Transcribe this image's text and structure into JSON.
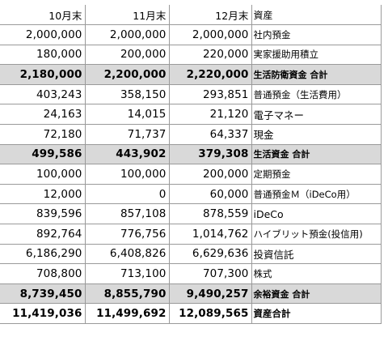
{
  "header": {
    "col1": "10月末",
    "col2": "11月末",
    "col3": "12月末",
    "col4": "資産"
  },
  "rows": [
    {
      "v1": "2,000,000",
      "v2": "2,000,000",
      "v3": "2,000,000",
      "label": "社内預金",
      "kind": "normal"
    },
    {
      "v1": "180,000",
      "v2": "200,000",
      "v3": "220,000",
      "label": "実家援助用積立",
      "kind": "normal"
    },
    {
      "v1": "2,180,000",
      "v2": "2,200,000",
      "v3": "2,220,000",
      "label": "生活防衛資金 合計",
      "kind": "subtotal"
    },
    {
      "v1": "403,243",
      "v2": "358,150",
      "v3": "293,851",
      "label": "普通預金（生活費用）",
      "kind": "normal"
    },
    {
      "v1": "24,163",
      "v2": "14,015",
      "v3": "21,120",
      "label": "電子マネー",
      "kind": "normal-wide"
    },
    {
      "v1": "72,180",
      "v2": "71,737",
      "v3": "64,337",
      "label": "現金",
      "kind": "normal-wide"
    },
    {
      "v1": "499,586",
      "v2": "443,902",
      "v3": "379,308",
      "label": "生活資金 合計",
      "kind": "subtotal"
    },
    {
      "v1": "100,000",
      "v2": "100,000",
      "v3": "200,000",
      "label": "定期預金",
      "kind": "normal"
    },
    {
      "v1": "12,000",
      "v2": "0",
      "v3": "60,000",
      "label": "普通預金Ｍ（iDeCo用）",
      "kind": "normal"
    },
    {
      "v1": "839,596",
      "v2": "857,108",
      "v3": "878,559",
      "label": "iDeCo",
      "kind": "normal-wide"
    },
    {
      "v1": "892,764",
      "v2": "776,756",
      "v3": "1,014,762",
      "label": "ハイブリット預金(投信用)",
      "kind": "normal"
    },
    {
      "v1": "6,186,290",
      "v2": "6,408,826",
      "v3": "6,629,636",
      "label": "投資信託",
      "kind": "normal-wide"
    },
    {
      "v1": "708,800",
      "v2": "713,100",
      "v3": "707,300",
      "label": "株式",
      "kind": "normal"
    },
    {
      "v1": "8,739,450",
      "v2": "8,855,790",
      "v3": "9,490,257",
      "label": "余裕資金 合計",
      "kind": "subtotal"
    },
    {
      "v1": "11,419,036",
      "v2": "11,499,692",
      "v3": "12,089,565",
      "label": "資産合計",
      "kind": "grand"
    }
  ]
}
